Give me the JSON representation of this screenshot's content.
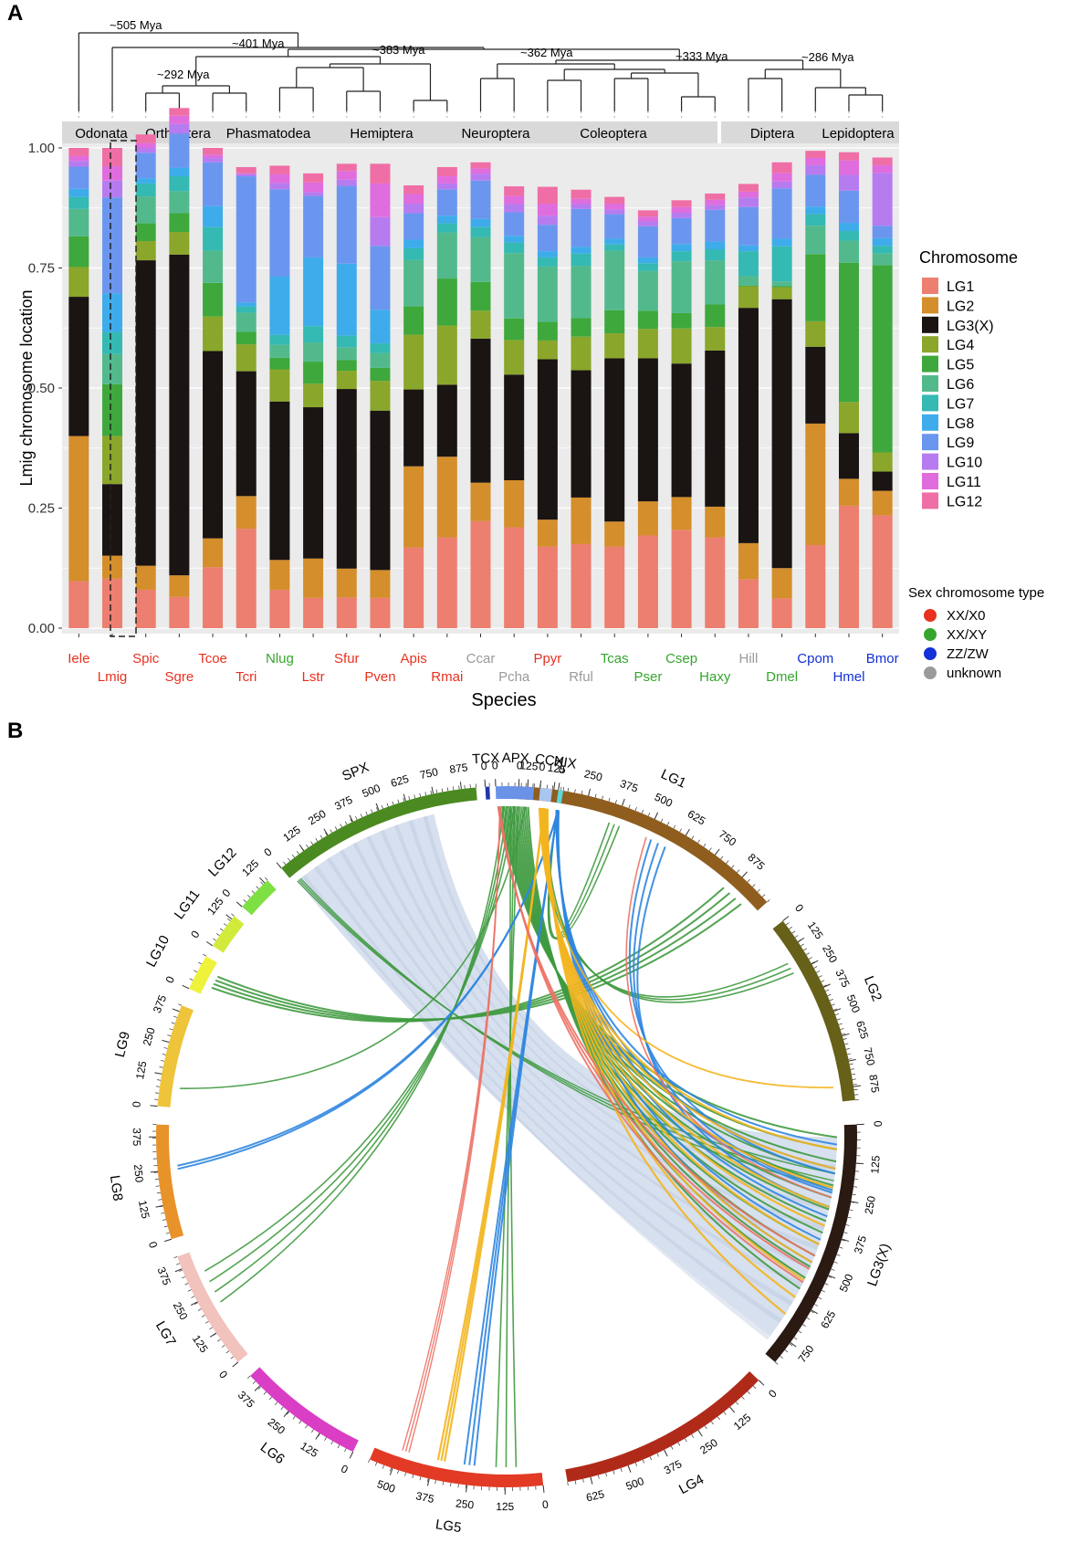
{
  "panel_a": {
    "label": "A",
    "divergence_labels": [
      "~505 Mya",
      "~401 Mya",
      "~383 Mya",
      "~362 Mya",
      "~333 Mya",
      "~286 Mya",
      "~292 Mya"
    ],
    "orders": [
      "Odonata",
      "Orthoptera",
      "Phasmatodea",
      "Hemiptera",
      "Neuroptera",
      "Coleoptera",
      "Diptera",
      "Lepidoptera"
    ],
    "legend_chromosome_title": "Chromosome",
    "legend_sex_title": "Sex chromosome type",
    "sex_types": [
      {
        "label": "XX/X0",
        "color": "#e8311f"
      },
      {
        "label": "XX/XY",
        "color": "#36a52e"
      },
      {
        "label": "ZZ/ZW",
        "color": "#1430d8"
      },
      {
        "label": "unknown",
        "color": "#9a9a9a"
      }
    ]
  },
  "chart_data": {
    "type": "bar",
    "stacked": true,
    "xlabel": "Species",
    "ylabel": "Lmig chromosome location",
    "ylim": [
      0,
      1
    ],
    "yticks": [
      "0.00",
      "0.25",
      "0.50",
      "0.75",
      "1.00"
    ],
    "categories": [
      "Iele",
      "Lmig",
      "Spic",
      "Sgre",
      "Tcoe",
      "Tcri",
      "Nlug",
      "Lstr",
      "Sfur",
      "Pven",
      "Apis",
      "Rmai",
      "Ccar",
      "Pcha",
      "Ppyr",
      "Rful",
      "Tcas",
      "Pser",
      "Csep",
      "Haxy",
      "Hill",
      "Dmel",
      "Cpom",
      "Hmel",
      "Bmor"
    ],
    "category_sex_type": [
      "XX/X0",
      "XX/X0",
      "XX/X0",
      "XX/X0",
      "XX/X0",
      "XX/X0",
      "XX/XY",
      "XX/X0",
      "XX/X0",
      "XX/X0",
      "XX/X0",
      "XX/X0",
      "unknown",
      "unknown",
      "XX/X0",
      "unknown",
      "XX/XY",
      "XX/XY",
      "XX/XY",
      "XX/XY",
      "unknown",
      "XX/XY",
      "ZZ/ZW",
      "ZZ/ZW",
      "ZZ/ZW"
    ],
    "series": [
      {
        "name": "LG1",
        "color": "#ec7f6f",
        "values": [
          0.098,
          0.103,
          0.08,
          0.065,
          0.127,
          0.207,
          0.08,
          0.063,
          0.064,
          0.063,
          0.168,
          0.189,
          0.223,
          0.21,
          0.17,
          0.175,
          0.17,
          0.193,
          0.205,
          0.189,
          0.102,
          0.062,
          0.173,
          0.255,
          0.235
        ]
      },
      {
        "name": "LG2",
        "color": "#d48e2b",
        "values": [
          0.302,
          0.048,
          0.05,
          0.045,
          0.06,
          0.068,
          0.062,
          0.082,
          0.06,
          0.058,
          0.169,
          0.168,
          0.08,
          0.098,
          0.056,
          0.097,
          0.052,
          0.071,
          0.068,
          0.064,
          0.075,
          0.063,
          0.253,
          0.056,
          0.051
        ]
      },
      {
        "name": "LG3(X)",
        "color": "#1a1412",
        "values": [
          0.29,
          0.149,
          0.636,
          0.668,
          0.39,
          0.26,
          0.33,
          0.315,
          0.374,
          0.332,
          0.16,
          0.15,
          0.3,
          0.22,
          0.334,
          0.265,
          0.34,
          0.298,
          0.278,
          0.325,
          0.49,
          0.56,
          0.16,
          0.095,
          0.04
        ]
      },
      {
        "name": "LG4",
        "color": "#8aa62b",
        "values": [
          0.062,
          0.1,
          0.04,
          0.047,
          0.072,
          0.056,
          0.067,
          0.049,
          0.038,
          0.062,
          0.114,
          0.123,
          0.058,
          0.072,
          0.039,
          0.07,
          0.052,
          0.061,
          0.073,
          0.049,
          0.045,
          0.025,
          0.053,
          0.065,
          0.04
        ]
      },
      {
        "name": "LG5",
        "color": "#3ea83c",
        "values": [
          0.064,
          0.108,
          0.037,
          0.039,
          0.07,
          0.026,
          0.024,
          0.046,
          0.022,
          0.027,
          0.059,
          0.098,
          0.06,
          0.045,
          0.039,
          0.039,
          0.048,
          0.038,
          0.032,
          0.047,
          0.001,
          0.002,
          0.14,
          0.29,
          0.39
        ]
      },
      {
        "name": "LG6",
        "color": "#52b98d",
        "values": [
          0.057,
          0.063,
          0.056,
          0.046,
          0.067,
          0.04,
          0.027,
          0.04,
          0.027,
          0.031,
          0.097,
          0.096,
          0.093,
          0.136,
          0.115,
          0.108,
          0.124,
          0.083,
          0.108,
          0.092,
          0.02,
          0.01,
          0.059,
          0.046,
          0.024
        ]
      },
      {
        "name": "LG7",
        "color": "#35b9b3",
        "values": [
          0.025,
          0.046,
          0.027,
          0.031,
          0.049,
          0.013,
          0.021,
          0.034,
          0.024,
          0.02,
          0.024,
          0.019,
          0.021,
          0.022,
          0.019,
          0.026,
          0.013,
          0.016,
          0.021,
          0.023,
          0.052,
          0.073,
          0.024,
          0.02,
          0.016
        ]
      },
      {
        "name": "LG8",
        "color": "#3eacea",
        "values": [
          0.017,
          0.08,
          0.011,
          0.018,
          0.044,
          0.008,
          0.121,
          0.143,
          0.15,
          0.07,
          0.018,
          0.016,
          0.017,
          0.014,
          0.013,
          0.014,
          0.012,
          0.012,
          0.015,
          0.016,
          0.012,
          0.016,
          0.016,
          0.017,
          0.016
        ]
      },
      {
        "name": "LG9",
        "color": "#6b96ef",
        "values": [
          0.046,
          0.2,
          0.053,
          0.071,
          0.091,
          0.263,
          0.182,
          0.128,
          0.162,
          0.133,
          0.055,
          0.055,
          0.08,
          0.049,
          0.055,
          0.079,
          0.051,
          0.065,
          0.054,
          0.066,
          0.08,
          0.105,
          0.066,
          0.067,
          0.026
        ]
      },
      {
        "name": "LG10",
        "color": "#b77bf0",
        "values": [
          0.012,
          0.035,
          0.01,
          0.02,
          0.009,
          0.005,
          0.013,
          0.008,
          0.013,
          0.06,
          0.02,
          0.012,
          0.014,
          0.017,
          0.019,
          0.01,
          0.01,
          0.01,
          0.011,
          0.01,
          0.02,
          0.014,
          0.02,
          0.033,
          0.11
        ]
      },
      {
        "name": "LG11",
        "color": "#df6ddd",
        "values": [
          0.01,
          0.03,
          0.01,
          0.017,
          0.007,
          0.001,
          0.018,
          0.02,
          0.018,
          0.07,
          0.02,
          0.015,
          0.011,
          0.017,
          0.025,
          0.011,
          0.012,
          0.01,
          0.012,
          0.011,
          0.012,
          0.018,
          0.015,
          0.03,
          0.016
        ]
      },
      {
        "name": "LG12",
        "color": "#ef6ea5",
        "values": [
          0.017,
          0.038,
          0.018,
          0.016,
          0.014,
          0.013,
          0.018,
          0.019,
          0.015,
          0.041,
          0.018,
          0.019,
          0.013,
          0.02,
          0.035,
          0.019,
          0.014,
          0.013,
          0.014,
          0.013,
          0.016,
          0.022,
          0.015,
          0.017,
          0.016
        ]
      }
    ]
  },
  "panel_b": {
    "label": "B",
    "chromosomes": [
      {
        "name": "LG1",
        "color": "#8f5e1e",
        "ticks": [
          "0",
          "125",
          "250",
          "375",
          "500",
          "625",
          "750",
          "875"
        ]
      },
      {
        "name": "LG2",
        "color": "#666018",
        "ticks": [
          "0",
          "125",
          "250",
          "375",
          "500",
          "625",
          "750",
          "875"
        ]
      },
      {
        "name": "LG3(X)",
        "color": "#2a1a12",
        "ticks": [
          "0",
          "125",
          "250",
          "375",
          "500",
          "625",
          "750"
        ]
      },
      {
        "name": "LG4",
        "color": "#b02a1a",
        "ticks": [
          "0",
          "125",
          "250",
          "375",
          "500",
          "625"
        ]
      },
      {
        "name": "LG5",
        "color": "#e23a24",
        "ticks": [
          "0",
          "125",
          "250",
          "375",
          "500"
        ]
      },
      {
        "name": "LG6",
        "color": "#d93ec4",
        "ticks": [
          "0",
          "125",
          "250",
          "375"
        ]
      },
      {
        "name": "LG7",
        "color": "#f2c2bc",
        "ticks": [
          "0",
          "125",
          "250",
          "375"
        ]
      },
      {
        "name": "LG8",
        "color": "#e8922a",
        "ticks": [
          "0",
          "125",
          "250",
          "375"
        ]
      },
      {
        "name": "LG9",
        "color": "#eec43a",
        "ticks": [
          "0",
          "125",
          "250",
          "375"
        ]
      },
      {
        "name": "LG10",
        "color": "#eef23a",
        "ticks": [
          "0"
        ]
      },
      {
        "name": "LG11",
        "color": "#d2ea3a",
        "ticks": [
          "0",
          "125"
        ]
      },
      {
        "name": "LG12",
        "color": "#7ee043",
        "ticks": [
          "0",
          "125"
        ]
      },
      {
        "name": "SPX",
        "color": "#4a8a20",
        "ticks": [
          "0",
          "125",
          "250",
          "375",
          "500",
          "625",
          "750",
          "875"
        ]
      },
      {
        "name": "TCX",
        "color": "#2235a8",
        "ticks": [
          "0"
        ]
      },
      {
        "name": "APX",
        "color": "#6a92e6",
        "ticks": [
          "0",
          "125"
        ]
      },
      {
        "name": "CCX",
        "color": "#a8c6f0",
        "ticks": [
          "0"
        ]
      },
      {
        "name": "HIX",
        "color": "#5cd8da",
        "ticks": [
          "0"
        ]
      }
    ]
  }
}
